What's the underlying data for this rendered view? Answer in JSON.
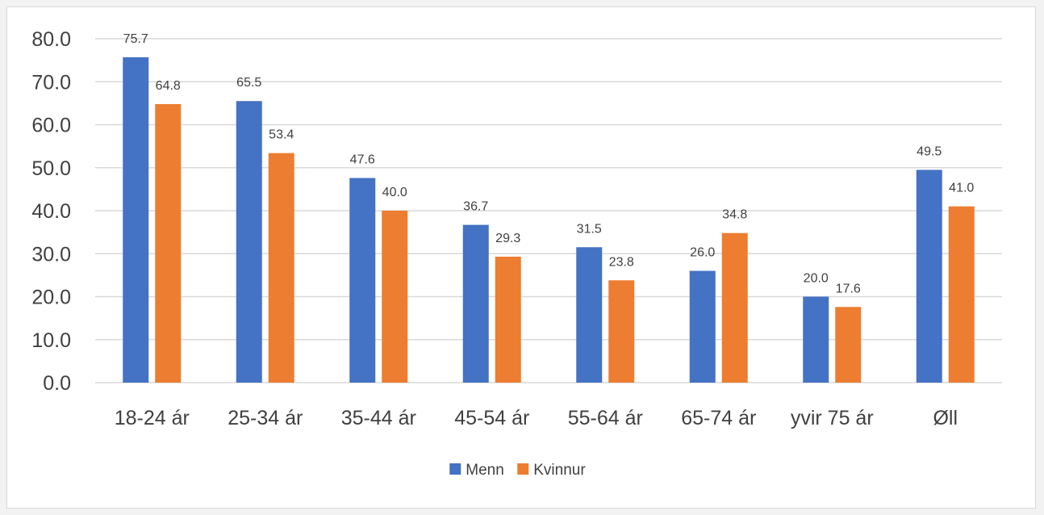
{
  "chart_data": {
    "type": "bar",
    "title": "",
    "xlabel": "",
    "ylabel": "",
    "categories": [
      "18-24 ár",
      "25-34 ár",
      "35-44 ár",
      "45-54 ár",
      "55-64 ár",
      "65-74 ár",
      "yvir 75 ár",
      "Øll"
    ],
    "series": [
      {
        "name": "Menn",
        "color": "#4472c4",
        "values": [
          75.7,
          65.5,
          47.6,
          36.7,
          31.5,
          26.0,
          20.0,
          49.5
        ]
      },
      {
        "name": "Kvinnur",
        "color": "#ed7d31",
        "values": [
          64.8,
          53.4,
          40.0,
          29.3,
          23.8,
          34.8,
          17.6,
          41.0
        ]
      }
    ],
    "ylim": [
      0,
      80
    ],
    "yticks": [
      "0.0",
      "10.0",
      "20.0",
      "30.0",
      "40.0",
      "50.0",
      "60.0",
      "70.0",
      "80.0"
    ],
    "grid": true,
    "legend_position": "bottom",
    "gridline_color": "#d9d9d9"
  }
}
